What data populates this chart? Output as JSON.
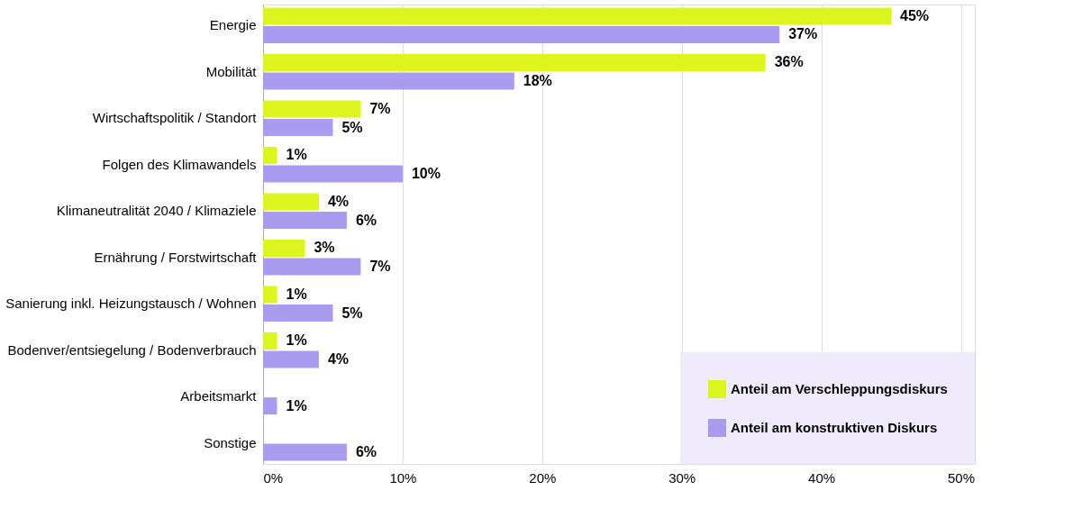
{
  "chart_data": {
    "type": "bar",
    "orientation": "horizontal",
    "categories": [
      "Energie",
      "Mobilität",
      "Wirtschaftspolitik / Standort",
      "Folgen des Klimawandels",
      "Klimaneutralität 2040 / Klimaziele",
      "Ernährung / Forstwirtschaft",
      "Sanierung inkl. Heizungstausch / Wohnen",
      "Bodenver/entsiegelung / Bodenverbrauch",
      "Arbeitsmarkt",
      "Sonstige"
    ],
    "series": [
      {
        "name": "Anteil am Verschleppungsdiskurs",
        "color": "#dcf51f",
        "values": [
          45,
          36,
          7,
          1,
          4,
          3,
          1,
          1,
          null,
          null
        ],
        "value_labels": [
          "45%",
          "36%",
          "7%",
          "1%",
          "4%",
          "3%",
          "1%",
          "1%",
          null,
          null
        ]
      },
      {
        "name": "Anteil am konstruktiven Diskurs",
        "color": "#a99cf0",
        "values": [
          37,
          18,
          5,
          10,
          6,
          7,
          5,
          4,
          1,
          6
        ],
        "value_labels": [
          "37%",
          "18%",
          "5%",
          "10%",
          "6%",
          "7%",
          "5%",
          "4%",
          "1%",
          "6%"
        ]
      }
    ],
    "xlim": [
      0,
      51
    ],
    "xticks": [
      {
        "value": 0,
        "label": "0%"
      },
      {
        "value": 10,
        "label": "10%"
      },
      {
        "value": 20,
        "label": "20%"
      },
      {
        "value": 30,
        "label": "30%"
      },
      {
        "value": 40,
        "label": "40%"
      },
      {
        "value": 50,
        "label": "50%"
      }
    ],
    "grid": "x",
    "legend": "bottom right"
  }
}
